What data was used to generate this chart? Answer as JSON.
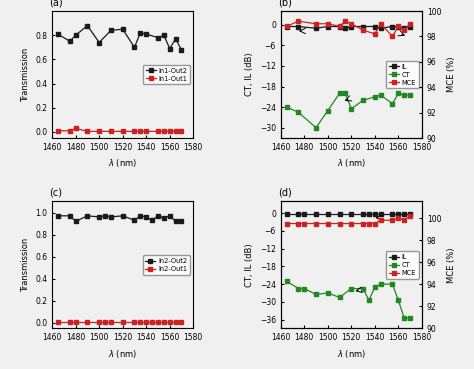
{
  "a_lambda": [
    1465,
    1475,
    1480,
    1490,
    1500,
    1510,
    1520,
    1530,
    1535,
    1540,
    1550,
    1555,
    1560,
    1565,
    1570
  ],
  "a_in1_out2": [
    0.81,
    0.75,
    0.8,
    0.88,
    0.74,
    0.84,
    0.85,
    0.7,
    0.82,
    0.81,
    0.78,
    0.8,
    0.69,
    0.77,
    0.68
  ],
  "a_in1_out1": [
    0.01,
    0.01,
    0.03,
    0.005,
    0.005,
    0.005,
    0.005,
    0.005,
    0.005,
    0.005,
    0.005,
    0.005,
    0.005,
    0.005,
    0.005
  ],
  "b_lambda": [
    1465,
    1475,
    1490,
    1500,
    1510,
    1515,
    1520,
    1530,
    1540,
    1545,
    1555,
    1560,
    1565,
    1570
  ],
  "b_IL": [
    -0.5,
    -0.5,
    -1.0,
    -0.5,
    -0.5,
    -1.0,
    -0.5,
    -0.5,
    -0.5,
    -1.0,
    -0.5,
    -0.5,
    -1.0,
    -0.5
  ],
  "b_CT": [
    -24.0,
    -25.5,
    -30.0,
    -25.0,
    -20.0,
    -20.0,
    -24.5,
    -22.0,
    -21.0,
    -20.5,
    -23.0,
    -20.0,
    -20.5,
    -20.5
  ],
  "b_MCE": [
    98.8,
    99.2,
    99.0,
    99.0,
    98.8,
    99.2,
    99.0,
    98.5,
    98.2,
    99.0,
    98.0,
    98.8,
    98.5,
    99.0
  ],
  "c_lambda": [
    1465,
    1475,
    1480,
    1490,
    1500,
    1505,
    1510,
    1520,
    1530,
    1535,
    1540,
    1545,
    1550,
    1555,
    1560,
    1565,
    1570
  ],
  "c_in2_out2": [
    0.97,
    0.97,
    0.92,
    0.97,
    0.96,
    0.97,
    0.96,
    0.97,
    0.93,
    0.97,
    0.96,
    0.93,
    0.97,
    0.95,
    0.97,
    0.92,
    0.92
  ],
  "c_in2_out1": [
    0.005,
    0.005,
    0.005,
    0.005,
    0.005,
    0.005,
    0.005,
    0.005,
    0.005,
    0.005,
    0.005,
    0.005,
    0.005,
    0.005,
    0.005,
    0.005,
    0.005
  ],
  "d_lambda": [
    1465,
    1475,
    1480,
    1490,
    1500,
    1510,
    1520,
    1530,
    1535,
    1540,
    1545,
    1555,
    1560,
    1565,
    1570
  ],
  "d_IL": [
    -0.3,
    -0.3,
    -0.3,
    -0.3,
    -0.3,
    -0.3,
    -0.3,
    -0.3,
    -0.3,
    -0.3,
    -0.3,
    -0.3,
    -0.3,
    -0.3,
    -0.3
  ],
  "d_CT": [
    -23.0,
    -25.5,
    -25.5,
    -27.5,
    -27.0,
    -28.5,
    -25.5,
    -25.5,
    -29.5,
    -25.0,
    -24.0,
    -24.0,
    -29.5,
    -35.5,
    -35.5
  ],
  "d_MCE": [
    99.5,
    99.5,
    99.5,
    99.5,
    99.5,
    99.5,
    99.5,
    99.5,
    99.5,
    99.5,
    99.8,
    99.8,
    100.0,
    99.8,
    100.2
  ],
  "color_black": "#1a1a1a",
  "color_red": "#cc2222",
  "color_green": "#228822",
  "background": "#f0f0f0"
}
